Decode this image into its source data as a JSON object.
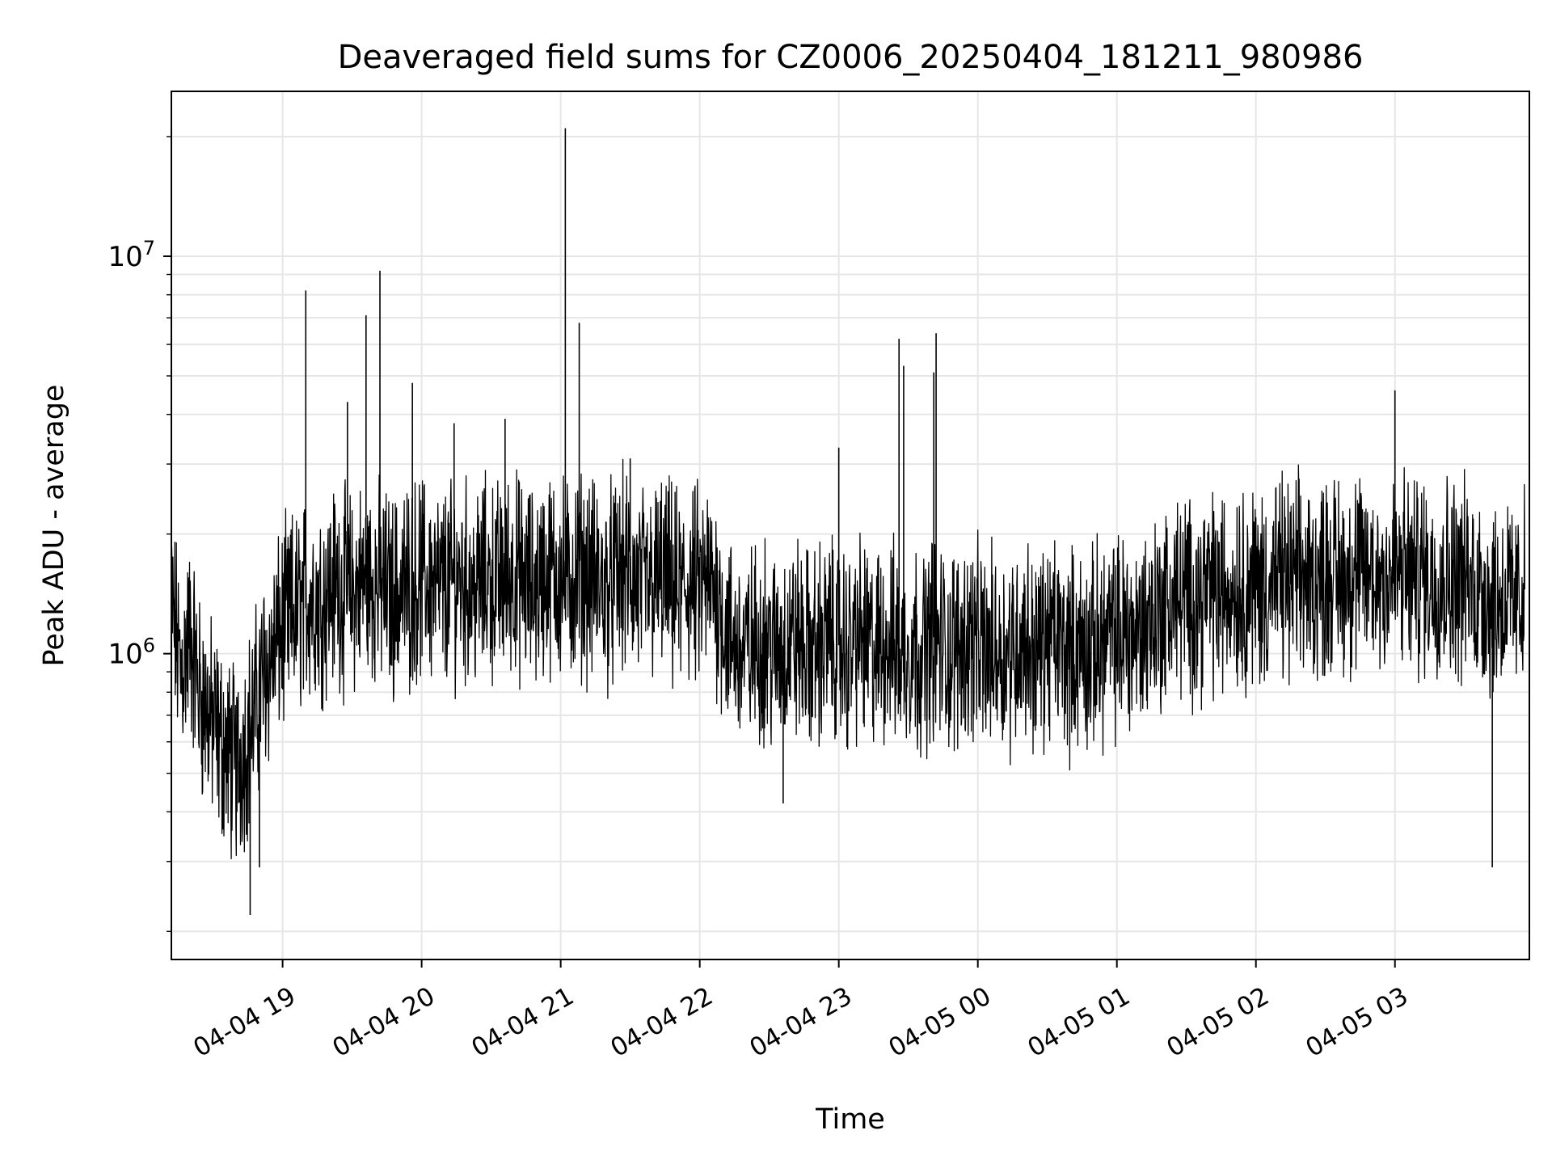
{
  "chart_data": {
    "type": "line",
    "title": "Deaveraged field sums for CZ0006_20250404_181211_980986",
    "xlabel": "Time",
    "ylabel": "Peak ADU - average",
    "y_scale": "log",
    "ylim": [
      170000,
      26000000
    ],
    "xlim": [
      "2025-04-04 18:12",
      "2025-04-05 03:58"
    ],
    "grid": true,
    "x_ticks": [
      {
        "t": "2025-04-04 19:00",
        "label": "04-04 19"
      },
      {
        "t": "2025-04-04 20:00",
        "label": "04-04 20"
      },
      {
        "t": "2025-04-04 21:00",
        "label": "04-04 21"
      },
      {
        "t": "2025-04-04 22:00",
        "label": "04-04 22"
      },
      {
        "t": "2025-04-04 23:00",
        "label": "04-04 23"
      },
      {
        "t": "2025-04-05 00:00",
        "label": "04-05 00"
      },
      {
        "t": "2025-04-05 01:00",
        "label": "04-05 01"
      },
      {
        "t": "2025-04-05 02:00",
        "label": "04-05 02"
      },
      {
        "t": "2025-04-05 03:00",
        "label": "04-05 03"
      }
    ],
    "y_ticks": [
      {
        "value": 1000000,
        "base": "10",
        "exp": "6"
      },
      {
        "value": 10000000,
        "base": "10",
        "exp": "7"
      }
    ],
    "line_color": "#000000",
    "grid_color": "#e6e6e6",
    "series": [
      {
        "values_x_time": [
          "2025-04-04 18:12",
          "2025-04-04 18:16",
          "2025-04-04 18:20",
          "2025-04-04 18:24",
          "2025-04-04 18:28",
          "2025-04-04 18:32",
          "2025-04-04 18:36",
          "2025-04-04 18:40",
          "2025-04-04 18:44",
          "2025-04-04 18:48",
          "2025-04-04 18:52",
          "2025-04-04 18:56",
          "2025-04-04 19:00",
          "2025-04-04 19:04",
          "2025-04-04 19:08",
          "2025-04-04 19:12",
          "2025-04-04 19:16",
          "2025-04-04 19:20",
          "2025-04-04 19:24",
          "2025-04-04 19:28",
          "2025-04-04 19:32",
          "2025-04-04 19:36",
          "2025-04-04 19:40",
          "2025-04-04 19:44",
          "2025-04-04 19:48",
          "2025-04-04 19:52",
          "2025-04-04 19:56",
          "2025-04-04 20:00",
          "2025-04-04 20:04",
          "2025-04-04 20:08",
          "2025-04-04 20:12",
          "2025-04-04 20:16",
          "2025-04-04 20:20",
          "2025-04-04 20:24",
          "2025-04-04 20:28",
          "2025-04-04 20:32",
          "2025-04-04 20:36",
          "2025-04-04 20:40",
          "2025-04-04 20:44",
          "2025-04-04 20:48",
          "2025-04-04 20:52",
          "2025-04-04 20:56",
          "2025-04-04 21:00",
          "2025-04-04 21:04",
          "2025-04-04 21:08",
          "2025-04-04 21:12",
          "2025-04-04 21:16",
          "2025-04-04 21:20",
          "2025-04-04 21:24",
          "2025-04-04 21:28",
          "2025-04-04 21:32",
          "2025-04-04 21:36",
          "2025-04-04 21:40",
          "2025-04-04 21:44",
          "2025-04-04 21:48",
          "2025-04-04 21:52",
          "2025-04-04 21:56",
          "2025-04-04 22:00",
          "2025-04-04 22:04",
          "2025-04-04 22:08",
          "2025-04-04 22:12",
          "2025-04-04 22:16",
          "2025-04-04 22:20",
          "2025-04-04 22:24",
          "2025-04-04 22:28",
          "2025-04-04 22:32",
          "2025-04-04 22:36",
          "2025-04-04 22:40",
          "2025-04-04 22:44",
          "2025-04-04 22:48",
          "2025-04-04 22:52",
          "2025-04-04 22:56",
          "2025-04-04 23:00",
          "2025-04-04 23:04",
          "2025-04-04 23:08",
          "2025-04-04 23:12",
          "2025-04-04 23:16",
          "2025-04-04 23:20",
          "2025-04-04 23:24",
          "2025-04-04 23:28",
          "2025-04-04 23:32",
          "2025-04-04 23:36",
          "2025-04-04 23:40",
          "2025-04-04 23:44",
          "2025-04-04 23:48",
          "2025-04-04 23:52",
          "2025-04-04 23:56",
          "2025-04-05 00:00",
          "2025-04-05 00:04",
          "2025-04-05 00:08",
          "2025-04-05 00:12",
          "2025-04-05 00:16",
          "2025-04-05 00:20",
          "2025-04-05 00:24",
          "2025-04-05 00:28",
          "2025-04-05 00:32",
          "2025-04-05 00:36",
          "2025-04-05 00:40",
          "2025-04-05 00:44",
          "2025-04-05 00:48",
          "2025-04-05 00:52",
          "2025-04-05 00:56",
          "2025-04-05 01:00",
          "2025-04-05 01:04",
          "2025-04-05 01:08",
          "2025-04-05 01:12",
          "2025-04-05 01:16",
          "2025-04-05 01:20",
          "2025-04-05 01:24",
          "2025-04-05 01:28",
          "2025-04-05 01:32",
          "2025-04-05 01:36",
          "2025-04-05 01:40",
          "2025-04-05 01:44",
          "2025-04-05 01:48",
          "2025-04-05 01:52",
          "2025-04-05 01:56",
          "2025-04-05 02:00",
          "2025-04-05 02:04",
          "2025-04-05 02:08",
          "2025-04-05 02:12",
          "2025-04-05 02:16",
          "2025-04-05 02:20",
          "2025-04-05 02:24",
          "2025-04-05 02:28",
          "2025-04-05 02:32",
          "2025-04-05 02:36",
          "2025-04-05 02:40",
          "2025-04-05 02:44",
          "2025-04-05 02:48",
          "2025-04-05 02:52",
          "2025-04-05 02:56",
          "2025-04-05 03:00",
          "2025-04-05 03:04",
          "2025-04-05 03:08",
          "2025-04-05 03:12",
          "2025-04-05 03:16",
          "2025-04-05 03:20",
          "2025-04-05 03:24",
          "2025-04-05 03:28",
          "2025-04-05 03:32",
          "2025-04-05 03:36",
          "2025-04-05 03:40",
          "2025-04-05 03:44",
          "2025-04-05 03:48",
          "2025-04-05 03:52",
          "2025-04-05 03:56"
        ],
        "values": [
          1300000,
          900000,
          1100000,
          800000,
          700000,
          620000,
          560000,
          520000,
          600000,
          700000,
          900000,
          1000000,
          1150000,
          1250000,
          1300000,
          1400000,
          1350000,
          1450000,
          1500000,
          1400000,
          1450000,
          1550000,
          1500000,
          1450000,
          1400000,
          1450000,
          1500000,
          1550000,
          1500000,
          1450000,
          1500000,
          1550000,
          1500000,
          1450000,
          1550000,
          1500000,
          1550000,
          1600000,
          1500000,
          1450000,
          1550000,
          1600000,
          1550000,
          1500000,
          1600000,
          1550000,
          1500000,
          1450000,
          1550000,
          1600000,
          1500000,
          1450000,
          1500000,
          1550000,
          1450000,
          1400000,
          1500000,
          1450000,
          1500000,
          1400000,
          1100000,
          1050000,
          1000000,
          1050000,
          1100000,
          1000000,
          1050000,
          1100000,
          1050000,
          1000000,
          1050000,
          1100000,
          1050000,
          1000000,
          1100000,
          1050000,
          1000000,
          1100000,
          1050000,
          1000000,
          1050000,
          1000000,
          1100000,
          1050000,
          1000000,
          1050000,
          1100000,
          1050000,
          1000000,
          1050000,
          1000000,
          1050000,
          1100000,
          1000000,
          1050000,
          1100000,
          1050000,
          1000000,
          1050000,
          1000000,
          1050000,
          1100000,
          1100000,
          1150000,
          1100000,
          1200000,
          1250000,
          1300000,
          1350000,
          1400000,
          1350000,
          1400000,
          1450000,
          1400000,
          1450000,
          1500000,
          1450000,
          1500000,
          1450000,
          1500000,
          1550000,
          1500000,
          1550000,
          1500000,
          1550000,
          1600000,
          1550000,
          1600000,
          1550000,
          1600000,
          1550000,
          1600000,
          1550000,
          1600000,
          1550000,
          1600000,
          1550000,
          1550000,
          1600000,
          1550000,
          1500000,
          1450000,
          1400000,
          1350000,
          1400000,
          1300000,
          1450000
        ],
        "spikes": [
          {
            "t": "2025-04-04 19:10",
            "value": 8200000
          },
          {
            "t": "2025-04-04 19:36",
            "value": 7100000
          },
          {
            "t": "2025-04-04 19:42",
            "value": 9200000
          },
          {
            "t": "2025-04-04 19:28",
            "value": 4300000
          },
          {
            "t": "2025-04-04 19:56",
            "value": 4800000
          },
          {
            "t": "2025-04-04 20:14",
            "value": 3800000
          },
          {
            "t": "2025-04-04 20:36",
            "value": 3900000
          },
          {
            "t": "2025-04-04 21:02",
            "value": 21000000
          },
          {
            "t": "2025-04-04 21:08",
            "value": 6800000
          },
          {
            "t": "2025-04-04 21:30",
            "value": 3100000
          },
          {
            "t": "2025-04-04 23:00",
            "value": 3300000
          },
          {
            "t": "2025-04-04 23:26",
            "value": 6200000
          },
          {
            "t": "2025-04-04 23:28",
            "value": 5300000
          },
          {
            "t": "2025-04-04 23:42",
            "value": 6400000
          },
          {
            "t": "2025-04-04 23:41",
            "value": 5100000
          },
          {
            "t": "2025-04-05 03:00",
            "value": 4600000
          },
          {
            "t": "2025-04-04 18:46",
            "value": 220000
          },
          {
            "t": "2025-04-04 18:50",
            "value": 290000
          },
          {
            "t": "2025-04-04 22:36",
            "value": 420000
          },
          {
            "t": "2025-04-05 03:42",
            "value": 290000
          }
        ]
      }
    ]
  }
}
